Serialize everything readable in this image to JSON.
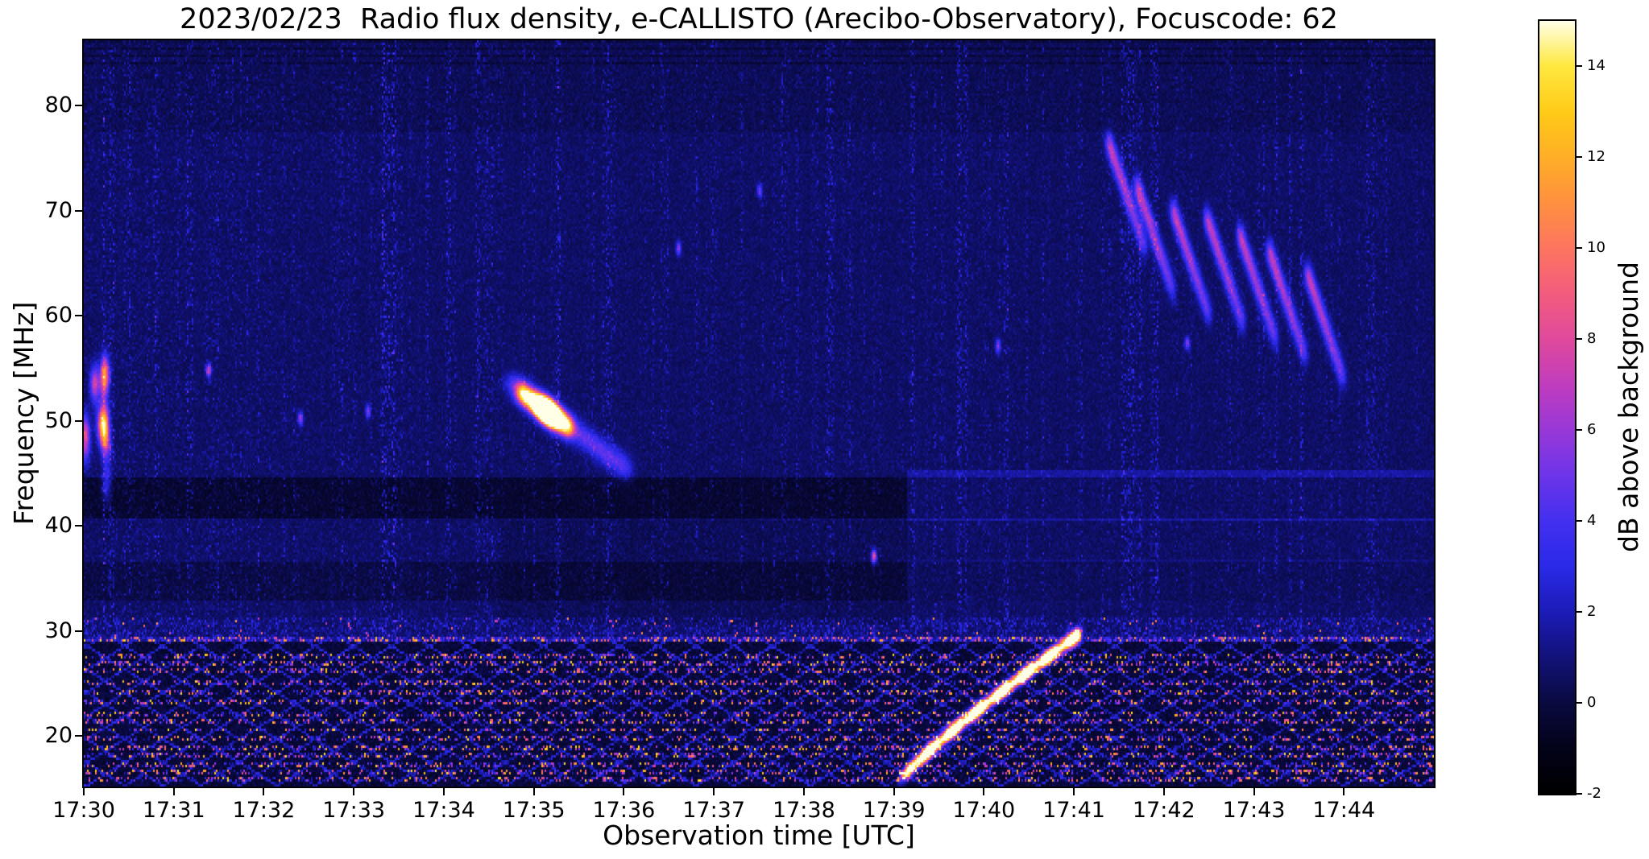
{
  "figure": {
    "background": "#ffffff"
  },
  "chart_data": {
    "type": "heatmap",
    "title": "2023/02/23  Radio flux density, e-CALLISTO (Arecibo-Observatory), Focuscode: 62",
    "date": "2023/02/23",
    "instrument": "e-CALLISTO",
    "station": "Arecibo-Observatory",
    "focuscode": "62",
    "xlabel": "Observation time [UTC]",
    "ylabel": "Frequency [MHz]",
    "x_ticks": [
      "17:30",
      "17:31",
      "17:32",
      "17:33",
      "17:34",
      "17:35",
      "17:36",
      "17:37",
      "17:38",
      "17:39",
      "17:40",
      "17:41",
      "17:42",
      "17:43",
      "17:44"
    ],
    "x_start": "17:30",
    "x_end": "17:45",
    "x_range_minutes": [
      0,
      15
    ],
    "y_ticks": [
      20,
      30,
      40,
      50,
      60,
      70,
      80
    ],
    "y_range_mhz": [
      15.2,
      86.2
    ],
    "grid": false,
    "legend": "none",
    "colorbar": {
      "label": "dB above background",
      "ticks": [
        -2,
        0,
        2,
        4,
        6,
        8,
        10,
        12,
        14
      ],
      "range": [
        -2,
        15
      ],
      "position": "right",
      "colormap_stops": [
        {
          "v": -2.0,
          "color": "#000000"
        },
        {
          "v": -1.0,
          "color": "#03031a"
        },
        {
          "v": 0.0,
          "color": "#0a0a40"
        },
        {
          "v": 1.0,
          "color": "#12127a"
        },
        {
          "v": 2.0,
          "color": "#1c1cb8"
        },
        {
          "v": 3.0,
          "color": "#2a2ae8"
        },
        {
          "v": 4.0,
          "color": "#4430f0"
        },
        {
          "v": 5.0,
          "color": "#6d35ea"
        },
        {
          "v": 6.0,
          "color": "#9838d8"
        },
        {
          "v": 7.0,
          "color": "#c13dbe"
        },
        {
          "v": 8.0,
          "color": "#e04a9c"
        },
        {
          "v": 9.0,
          "color": "#f35c7e"
        },
        {
          "v": 10.0,
          "color": "#fd7560"
        },
        {
          "v": 11.0,
          "color": "#ff9140"
        },
        {
          "v": 12.0,
          "color": "#ffae26"
        },
        {
          "v": 13.0,
          "color": "#ffcb18"
        },
        {
          "v": 14.0,
          "color": "#ffe83e"
        },
        {
          "v": 15.0,
          "color": "#ffffe8"
        }
      ]
    },
    "background_db_range": [
      0,
      2
    ],
    "features": [
      {
        "name": "terrestrial-rfi-band",
        "t_min": [
          0,
          15
        ],
        "freq_mhz": [
          15.2,
          29.5
        ],
        "peak_db": 14,
        "channel_freqs_mhz": [
          29.3,
          27.6,
          26.9,
          26.2,
          25.0,
          24.2,
          23.3,
          22.1,
          21.4,
          20.6,
          19.8,
          18.9,
          18.1,
          17.3,
          16.5,
          15.8
        ],
        "description": "Dense speckled terrestrial RFI lattice filling the band below ~29.5 MHz"
      },
      {
        "name": "bright-rfi-line",
        "t_min": [
          0,
          15
        ],
        "freq_mhz": [
          29.1,
          29.5
        ],
        "peak_db": 10,
        "description": "Nearly continuous bright interference line near 29.3 MHz"
      },
      {
        "name": "drifting-burst",
        "t_min": [
          4.83,
          5.4
        ],
        "freq_mhz": [
          52.9,
          49.4
        ],
        "peak_db": 12,
        "time_utc": [
          "17:34:50",
          "17:35:24"
        ],
        "description": "Compact bright pink-white drifting emission near 50 MHz"
      },
      {
        "name": "rising-drift-line",
        "t_min": [
          9.05,
          11.05
        ],
        "freq_mhz": [
          15.8,
          29.8
        ],
        "peak_db": 13,
        "time_utc": [
          "17:39:03",
          "17:41:03"
        ],
        "description": "Thin bright yellow-orange diagonal striation rising from 16 MHz to ~30 MHz"
      },
      {
        "name": "dark-absorption-lanes",
        "freq_mhz": [
          [
            40.8,
            44.6
          ],
          [
            32.8,
            36.6
          ]
        ],
        "db": -0.5,
        "description": "Darker horizontal lanes near 41-44.5 MHz and 33-36.5 MHz"
      },
      {
        "name": "right-side-enhanced-band",
        "t_min": [
          9.15,
          15
        ],
        "freq_mhz": [
          40.5,
          45.2
        ],
        "db": 2,
        "description": "Enhanced blue band after ~17:39"
      },
      {
        "name": "faint-descending-arcs",
        "t_min": [
          11.3,
          13.9
        ],
        "freq_mhz": [
          50,
          78
        ],
        "db": 3.5,
        "count": 7,
        "description": "Faint blue streaks drifting downward on the right side near 17:42-17:44"
      },
      {
        "name": "vertical-ionospheric-streaks",
        "t_min": [
          0,
          15
        ],
        "freq_mhz": [
          30,
          86
        ],
        "db": 4,
        "description": "Numerous faint vertical blue streaks at all frequencies, denser before 17:34"
      },
      {
        "name": "left-edge-activity",
        "t_min": [
          0,
          0.25
        ],
        "freq_mhz": [
          44,
          56
        ],
        "db": 6,
        "description": "Bright cluster at the very start near 45-55 MHz"
      },
      {
        "name": "isolated-bright-pixels",
        "points": [
          {
            "t_min": 8.77,
            "freq_mhz": 37.2,
            "db": 8
          },
          {
            "t_min": 6.6,
            "freq_mhz": 66.5,
            "db": 5
          },
          {
            "t_min": 1.38,
            "freq_mhz": 54.9,
            "db": 7
          },
          {
            "t_min": 3.15,
            "freq_mhz": 51.0,
            "db": 5
          },
          {
            "t_min": 10.15,
            "freq_mhz": 57.2,
            "db": 5
          },
          {
            "t_min": 12.25,
            "freq_mhz": 57.5,
            "db": 5
          },
          {
            "t_min": 2.4,
            "freq_mhz": 50.3,
            "db": 5.5
          },
          {
            "t_min": 7.5,
            "freq_mhz": 72.0,
            "db": 4.5
          }
        ],
        "description": "Scattered isolated bright dots above 30 MHz"
      }
    ]
  }
}
